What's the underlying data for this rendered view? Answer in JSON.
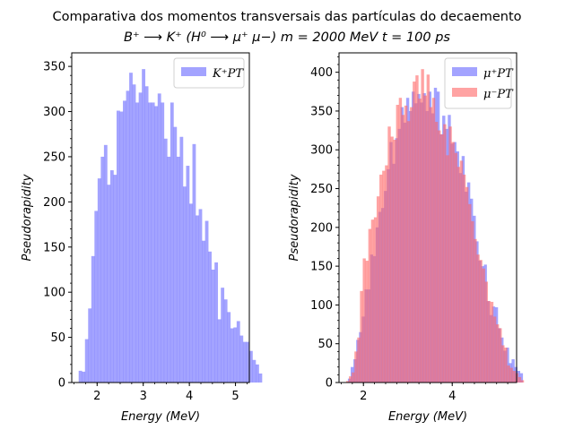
{
  "figure": {
    "title_line1": "Comparativa dos momentos transversais das partículas do decaemento",
    "title_line2": "B⁺ ⟶ K⁺ (H⁰ ⟶ μ⁺ μ−)   m = 2000 MeV   t = 100 ps"
  },
  "colors": {
    "blue": "#6666ff",
    "red": "#ff6666",
    "overlap": "#c42863"
  },
  "chart_data": [
    {
      "type": "bar",
      "subtype": "histogram",
      "xlabel": "Energy (MeV)",
      "ylabel": "Pseudorapidity",
      "xlim": [
        1.45,
        5.3
      ],
      "ylim": [
        0,
        365
      ],
      "xticks": [
        2,
        3,
        4,
        5
      ],
      "yticks": [
        0,
        50,
        100,
        150,
        200,
        250,
        300,
        350
      ],
      "legend_position": "top-right",
      "series": [
        {
          "name": "K⁺PT",
          "color": "#6666ff",
          "bin_start": 1.6,
          "bin_width": 0.0685,
          "values": [
            13,
            12,
            48,
            82,
            140,
            190,
            226,
            250,
            263,
            219,
            235,
            230,
            301,
            300,
            312,
            323,
            343,
            330,
            310,
            321,
            347,
            328,
            310,
            310,
            306,
            320,
            310,
            270,
            250,
            310,
            283,
            250,
            272,
            217,
            240,
            198,
            264,
            185,
            192,
            157,
            179,
            145,
            125,
            133,
            70,
            105,
            92,
            78,
            60,
            61,
            68,
            52,
            45,
            45,
            35,
            25,
            20,
            10
          ]
        }
      ]
    },
    {
      "type": "bar",
      "subtype": "histogram",
      "xlabel": "Energy (MeV)",
      "ylabel": "Pseudorapidity",
      "xlim": [
        1.45,
        5.45
      ],
      "ylim": [
        0,
        425
      ],
      "xticks": [
        2,
        4
      ],
      "yticks": [
        0,
        50,
        100,
        150,
        200,
        250,
        300,
        350,
        400
      ],
      "legend_position": "top-right",
      "series": [
        {
          "name": "μ⁺PT",
          "color": "#6666ff",
          "bin_start": 1.65,
          "bin_width": 0.0625,
          "values": [
            5,
            20,
            30,
            55,
            65,
            85,
            120,
            120,
            165,
            163,
            200,
            220,
            225,
            247,
            275,
            310,
            282,
            315,
            327,
            355,
            335,
            367,
            350,
            375,
            360,
            372,
            361,
            373,
            350,
            375,
            347,
            380,
            375,
            320,
            344,
            327,
            345,
            308,
            310,
            298,
            270,
            292,
            246,
            258,
            237,
            215,
            182,
            157,
            150,
            152,
            105,
            87,
            98,
            97,
            70,
            58,
            41,
            45,
            25,
            30,
            20,
            15,
            12
          ]
        },
        {
          "name": "μ⁻PT",
          "color": "#ff6666",
          "bin_start": 1.61,
          "bin_width": 0.0625,
          "values": [
            2,
            8,
            13,
            40,
            58,
            118,
            160,
            157,
            198,
            210,
            213,
            240,
            268,
            273,
            280,
            330,
            317,
            313,
            358,
            367,
            345,
            357,
            337,
            355,
            388,
            396,
            366,
            404,
            370,
            397,
            355,
            367,
            336,
            325,
            320,
            333,
            293,
            330,
            310,
            296,
            278,
            286,
            268,
            252,
            230,
            208,
            185,
            165,
            158,
            147,
            130,
            105,
            104,
            85,
            75,
            70,
            48,
            45,
            22,
            19,
            15,
            12,
            7,
            3
          ]
        }
      ]
    }
  ]
}
